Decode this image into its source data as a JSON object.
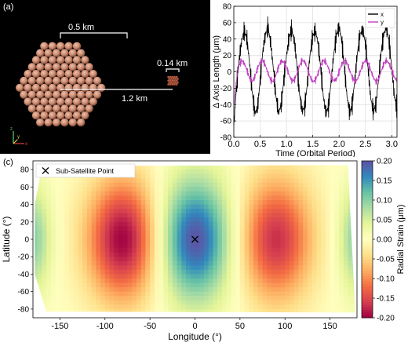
{
  "panel_a": {
    "label": "(a)",
    "scale_large": "0.5 km",
    "scale_small": "0.14 km",
    "separation": "1.2 km",
    "axis_triad": {
      "x": "x",
      "y": "y",
      "z": "z"
    },
    "colors": {
      "background": "#000000",
      "particle": "#c88a70",
      "particle_dark": "#8a4a38",
      "small_body": "#a0503c"
    }
  },
  "panel_b_label": "",
  "panel_c": {
    "label": "(c)",
    "legend_marker": "Sub-Satellite Point"
  },
  "chart_data": [
    {
      "type": "line",
      "xlabel": "Time (Orbital Period)",
      "ylabel": "Δ Axis Length (μm)",
      "xlim": [
        0.0,
        3.1
      ],
      "ylim": [
        -80,
        80
      ],
      "xticks": [
        "0.0",
        "0.5",
        "1.0",
        "1.5",
        "2.0",
        "2.5",
        "3.0"
      ],
      "yticks": [
        "-80",
        "-60",
        "-40",
        "-20",
        "0",
        "20",
        "40",
        "60",
        "80"
      ],
      "grid": true,
      "legend_position": "top-right",
      "series": [
        {
          "name": "x",
          "color": "#000000",
          "x": [
            0.0,
            0.05,
            0.1,
            0.15,
            0.2,
            0.25,
            0.3,
            0.35,
            0.4,
            0.45,
            0.5,
            0.55,
            0.6,
            0.65,
            0.7,
            0.75,
            0.8,
            0.85,
            0.9,
            0.95,
            1.0,
            1.05,
            1.1,
            1.15,
            1.2,
            1.25,
            1.3,
            1.35,
            1.4,
            1.45,
            1.5,
            1.55,
            1.6,
            1.65,
            1.7,
            1.75,
            1.8,
            1.85,
            1.9,
            1.95,
            2.0,
            2.05,
            2.1,
            2.15,
            2.2,
            2.25,
            2.3,
            2.35,
            2.4,
            2.45,
            2.5,
            2.55,
            2.6,
            2.65,
            2.7,
            2.75,
            2.8,
            2.85,
            2.9,
            2.95,
            3.0,
            3.05,
            3.1
          ],
          "values": [
            -65,
            -20,
            15,
            38,
            50,
            40,
            10,
            -25,
            -50,
            -45,
            -10,
            25,
            45,
            55,
            35,
            5,
            -30,
            -50,
            -40,
            -10,
            20,
            42,
            52,
            38,
            8,
            -28,
            -48,
            -42,
            -12,
            22,
            44,
            50,
            36,
            5,
            -30,
            -50,
            -42,
            -10,
            22,
            45,
            55,
            38,
            6,
            -30,
            -50,
            -40,
            -8,
            24,
            46,
            52,
            34,
            4,
            -32,
            -48,
            -40,
            -8,
            25,
            46,
            55,
            36,
            5,
            -30,
            -45
          ]
        },
        {
          "name": "y",
          "color": "#c040c0",
          "x": [
            0.0,
            0.05,
            0.1,
            0.15,
            0.2,
            0.25,
            0.3,
            0.35,
            0.4,
            0.45,
            0.5,
            0.55,
            0.6,
            0.65,
            0.7,
            0.75,
            0.8,
            0.85,
            0.9,
            0.95,
            1.0,
            1.05,
            1.1,
            1.15,
            1.2,
            1.25,
            1.3,
            1.35,
            1.4,
            1.45,
            1.5,
            1.55,
            1.6,
            1.65,
            1.7,
            1.75,
            1.8,
            1.85,
            1.9,
            1.95,
            2.0,
            2.05,
            2.1,
            2.15,
            2.2,
            2.25,
            2.3,
            2.35,
            2.4,
            2.45,
            2.5,
            2.55,
            2.6,
            2.65,
            2.7,
            2.75,
            2.8,
            2.85,
            2.9,
            2.95,
            3.0,
            3.05,
            3.1
          ],
          "values": [
            -40,
            -10,
            8,
            14,
            10,
            2,
            -8,
            -12,
            -6,
            4,
            12,
            14,
            8,
            -2,
            -10,
            -12,
            -4,
            6,
            13,
            12,
            6,
            -4,
            -11,
            -10,
            -2,
            8,
            14,
            12,
            4,
            -6,
            -12,
            -10,
            -2,
            8,
            14,
            12,
            4,
            -6,
            -11,
            -9,
            0,
            9,
            14,
            11,
            2,
            -7,
            -12,
            -9,
            0,
            9,
            14,
            11,
            2,
            -7,
            -12,
            -9,
            1,
            10,
            14,
            10,
            2,
            -7,
            -10
          ]
        }
      ]
    },
    {
      "type": "heatmap",
      "xlabel": "Longitude (°)",
      "ylabel": "Latitude (°)",
      "xlim": [
        -180,
        180
      ],
      "ylim": [
        -90,
        90
      ],
      "xticks": [
        "-150",
        "-100",
        "-50",
        "0",
        "50",
        "100",
        "150"
      ],
      "yticks": [
        "-80",
        "-60",
        "-40",
        "-20",
        "0",
        "20",
        "40",
        "60",
        "80"
      ],
      "colorbar": {
        "label": "Radial Strain (μm)",
        "min": -0.2,
        "max": 0.2,
        "ticks": [
          "-0.20",
          "-0.15",
          "-0.10",
          "-0.05",
          "0.00",
          "0.05",
          "0.10",
          "0.15",
          "0.20"
        ],
        "colormap": "Spectral"
      },
      "sub_satellite_point": {
        "lon": 0,
        "lat": 0
      },
      "features": [
        {
          "kind": "min",
          "lon": -80,
          "lat": 0,
          "value": -0.2
        },
        {
          "kind": "max",
          "lon": 0,
          "lat": 0,
          "value": 0.2
        },
        {
          "kind": "min",
          "lon": 90,
          "lat": 0,
          "value": -0.17
        }
      ]
    }
  ]
}
